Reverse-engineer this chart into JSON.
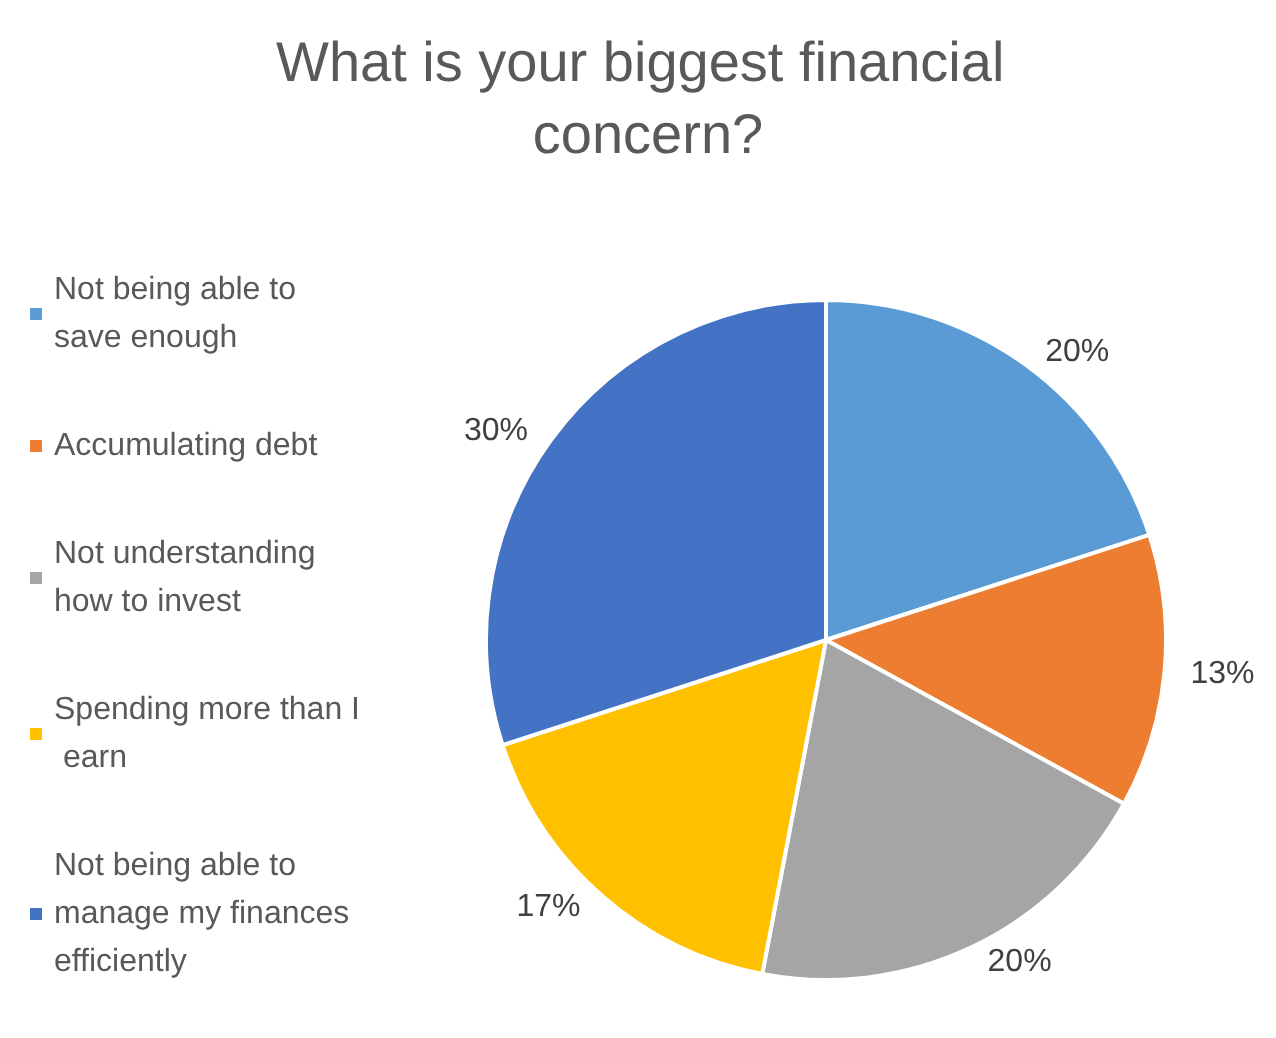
{
  "chart_data": {
    "type": "pie",
    "title": "What is your biggest financial concern?",
    "categories": [
      "Not being able to save enough",
      "Accumulating debt",
      "Not understanding how to invest",
      "Spending more than I earn",
      "Not being able to manage my finances efficiently"
    ],
    "values": [
      20,
      13,
      20,
      17,
      30
    ],
    "colors": [
      "#5b9bd5",
      "#ed7d31",
      "#a5a5a5",
      "#ffc000",
      "#4472c4"
    ],
    "value_labels": [
      "20%",
      "13%",
      "20%",
      "17%",
      "30%"
    ],
    "legend": "left"
  }
}
